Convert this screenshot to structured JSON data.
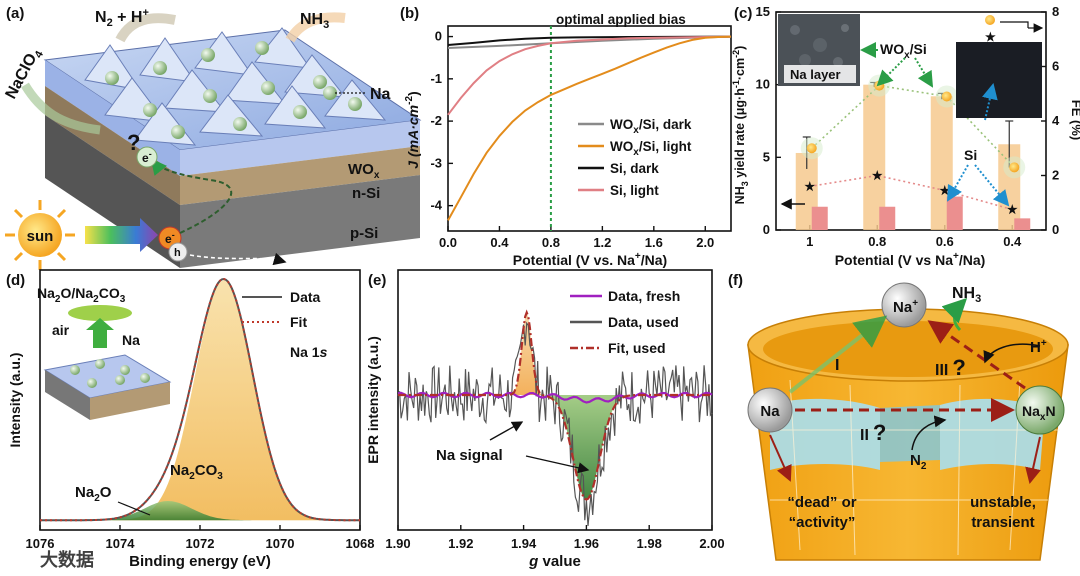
{
  "panels": {
    "a": {
      "label": "(a)",
      "n2h": "N",
      "n2h_sub": "2",
      "n2h_rest": " + H",
      "n2h_sup": "+",
      "nh3": "NH",
      "nh3_sub": "3",
      "naclo4": "NaClO",
      "naclo4_sub": "4",
      "na": "Na",
      "wox": "WO",
      "wox_sub": "x",
      "nsi": "n-Si",
      "psi": "p-Si",
      "sun": "sun",
      "electron": "e",
      "electron_sup": "-",
      "hole": "h",
      "question": "?"
    },
    "b": {
      "label": "(b)",
      "annotation": "optimal applied bias",
      "xlabel": "Potential (V vs. Na",
      "xlabel_sup": "+",
      "xlabel_end": "/Na)",
      "ylabel": "J (mA·cm",
      "ylabel_sup": "-2",
      "ylabel_end": ")",
      "legend": [
        {
          "name": "WO",
          "sub": "x",
          "rest": "/Si, dark",
          "color": "#8a8a8a"
        },
        {
          "name": "WO",
          "sub": "x",
          "rest": "/Si, light",
          "color": "#e38c1c"
        },
        {
          "name": "Si, dark",
          "sub": "",
          "rest": "",
          "color": "#111111"
        },
        {
          "name": "Si, light",
          "sub": "",
          "rest": "",
          "color": "#e07f84"
        }
      ]
    },
    "c": {
      "label": "(c)",
      "xlabel": "Potential (V vs Na",
      "xlabel_sup": "+",
      "xlabel_end": "/Na)",
      "ylabel": "NH",
      "ylabel_sub": "3",
      "ylabel_end": " yield rate (μg·h",
      "ylabel_sup1": "-1",
      "ylabel_mid": "·cm",
      "ylabel_sup2": "-2",
      "ylabel_close": ")",
      "y2label": "FE (%)",
      "inset_label": "Na layer",
      "wox_label": "WO",
      "wox_sub": "x",
      "wox_rest": "/Si",
      "si_label": "Si"
    },
    "d": {
      "label": "(d)",
      "inset_title": "Na",
      "inset_title_sub1": "2",
      "inset_title_mid": "O/Na",
      "inset_title_sub2": "2",
      "inset_title_mid2": "CO",
      "inset_title_sub3": "3",
      "air": "air",
      "na": "Na",
      "legend_data": "Data",
      "legend_fit": "Fit",
      "na1s": "Na 1",
      "na1s_it": "s",
      "peak1": "Na",
      "peak1_sub1": "2",
      "peak1_mid": "CO",
      "peak1_sub2": "3",
      "peak2": "Na",
      "peak2_sub": "2",
      "peak2_end": "O",
      "xlabel": "Binding energy (eV)",
      "ylabel": "Intensity (a.u.)"
    },
    "e": {
      "label": "(e)",
      "legend": [
        "Data, fresh",
        "Data, used",
        "Fit, used"
      ],
      "signal": "Na signal",
      "xlabel_it": "g",
      "xlabel": " value",
      "ylabel": "EPR intensity (a.u.)"
    },
    "f": {
      "label": "(f)",
      "na_plus": "Na",
      "na_plus_sup": "+",
      "na": "Na",
      "naxn": "Na",
      "naxn_sub": "x",
      "naxn_end": "N",
      "nh3": "NH",
      "nh3_sub": "3",
      "hplus": "H",
      "hplus_sup": "+",
      "n2": "N",
      "n2_sub": "2",
      "step1": "I",
      "step2": "II",
      "step3": "III",
      "q": "?",
      "dead1": "“dead” or",
      "dead2": "“activity”",
      "unstable1": "unstable,",
      "unstable2": "transient"
    }
  },
  "watermark": "大数据",
  "chart_data": [
    {
      "type": "line",
      "panel": "b",
      "title": "",
      "xlabel": "Potential (V vs. Na+/Na)",
      "ylabel": "J (mA·cm-2)",
      "xlim": [
        0.0,
        2.2
      ],
      "ylim": [
        -4.6,
        0.25
      ],
      "xticks": [
        0.0,
        0.4,
        0.8,
        1.2,
        1.6,
        2.0
      ],
      "yticks": [
        0,
        -1,
        -2,
        -3,
        -4
      ],
      "vline": 0.8,
      "series": [
        {
          "name": "WOx/Si, dark",
          "color": "#8a8a8a",
          "x": [
            0.0,
            0.4,
            0.8,
            1.2,
            1.6,
            2.0,
            2.2
          ],
          "y": [
            -0.27,
            -0.22,
            -0.16,
            -0.1,
            -0.05,
            -0.02,
            0.0
          ]
        },
        {
          "name": "Si, dark",
          "color": "#111111",
          "x": [
            0.0,
            0.2,
            0.4,
            0.6,
            0.8,
            1.0,
            1.4,
            2.2
          ],
          "y": [
            -0.2,
            -0.15,
            -0.09,
            -0.05,
            -0.03,
            -0.02,
            -0.01,
            0.0
          ]
        },
        {
          "name": "Si, light",
          "color": "#e07f84",
          "x": [
            0.0,
            0.1,
            0.2,
            0.3,
            0.4,
            0.5,
            0.6,
            0.7,
            0.8,
            1.0,
            1.4,
            2.2
          ],
          "y": [
            -1.85,
            -1.45,
            -1.1,
            -0.8,
            -0.58,
            -0.42,
            -0.3,
            -0.22,
            -0.16,
            -0.1,
            -0.04,
            0.0
          ]
        },
        {
          "name": "WOx/Si, light",
          "color": "#e38c1c",
          "x": [
            0.0,
            0.1,
            0.2,
            0.3,
            0.4,
            0.5,
            0.6,
            0.7,
            0.8,
            0.9,
            1.0,
            1.1,
            1.2,
            1.3,
            1.4,
            1.5,
            1.6,
            1.7,
            1.8,
            1.9,
            2.0,
            2.1,
            2.2
          ],
          "y": [
            -4.35,
            -3.8,
            -3.25,
            -2.75,
            -2.35,
            -2.02,
            -1.75,
            -1.55,
            -1.38,
            -1.25,
            -1.12,
            -1.0,
            -0.88,
            -0.76,
            -0.63,
            -0.5,
            -0.38,
            -0.26,
            -0.16,
            -0.08,
            -0.03,
            -0.01,
            0.0
          ]
        }
      ]
    },
    {
      "type": "bar",
      "panel": "c",
      "title": "",
      "xlabel": "Potential (V vs Na+/Na)",
      "ylabel": "NH3 yield rate (μg·h-1·cm-2)",
      "y2label": "FE (%)",
      "categories": [
        "1",
        "0.8",
        "0.6",
        "0.4"
      ],
      "ylim": [
        0,
        15
      ],
      "y2lim": [
        0,
        8
      ],
      "yticks": [
        0,
        5,
        10,
        15
      ],
      "y2ticks": [
        0,
        2,
        4,
        6,
        8
      ],
      "series": [
        {
          "name": "WOx/Si yield",
          "axis": "left",
          "values": [
            5.3,
            10.0,
            9.2,
            5.9
          ],
          "errors": [
            1.1,
            0.15,
            0.2,
            1.6
          ],
          "color": "#f6c98e"
        },
        {
          "name": "Si yield",
          "axis": "left",
          "values": [
            1.6,
            1.6,
            2.3,
            0.8
          ],
          "color": "#eb8f8f"
        },
        {
          "name": "WOx/Si FE",
          "axis": "right",
          "values": [
            3.0,
            5.3,
            4.9,
            2.3
          ],
          "color": "#e8a02b"
        },
        {
          "name": "Si FE",
          "axis": "right",
          "values": [
            1.6,
            2.0,
            1.45,
            0.75
          ],
          "color": "#e48a8a"
        }
      ]
    },
    {
      "type": "line",
      "panel": "d",
      "title": "",
      "xlabel": "Binding energy (eV)",
      "ylabel": "Intensity (a.u.)",
      "xlim": [
        1076,
        1068
      ],
      "xticks": [
        1076,
        1074,
        1072,
        1070,
        1068
      ],
      "peaks": [
        {
          "name": "Na2CO3",
          "center": 1071.4,
          "fwhm": 1.7,
          "height": 1.0
        },
        {
          "name": "Na2O",
          "center": 1072.8,
          "fwhm": 1.4,
          "height": 0.08
        }
      ],
      "series": [
        {
          "name": "Data",
          "color": "#555555"
        },
        {
          "name": "Fit",
          "color": "#c0392b"
        }
      ]
    },
    {
      "type": "line",
      "panel": "e",
      "title": "",
      "xlabel": "g value",
      "ylabel": "EPR intensity (a.u.)",
      "xlim": [
        1.9,
        2.0
      ],
      "xticks": [
        1.9,
        1.92,
        1.94,
        1.96,
        1.98,
        2.0
      ],
      "features": [
        {
          "name": "positive peak",
          "g": 1.941,
          "amplitude": 0.75
        },
        {
          "name": "negative peak",
          "g": 1.96,
          "amplitude": -0.95
        }
      ],
      "series": [
        {
          "name": "Data, fresh",
          "color": "#a020c0"
        },
        {
          "name": "Data, used",
          "color": "#555555"
        },
        {
          "name": "Fit, used",
          "color": "#b0302a"
        }
      ]
    }
  ]
}
